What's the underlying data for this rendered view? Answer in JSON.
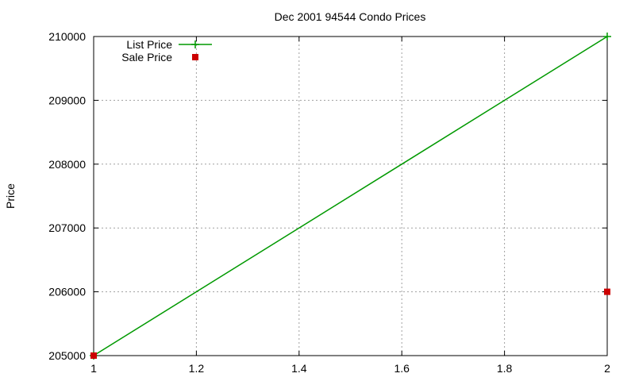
{
  "chart_data": {
    "type": "line",
    "title": "Dec 2001 94544 Condo Prices",
    "xlabel": "",
    "ylabel": "Price",
    "xlim": [
      1,
      2
    ],
    "ylim": [
      205000,
      210000
    ],
    "xticks": [
      "1",
      "1.2",
      "1.4",
      "1.6",
      "1.8",
      "2"
    ],
    "yticks": [
      "205000",
      "206000",
      "207000",
      "208000",
      "209000",
      "210000"
    ],
    "grid": true,
    "legend_position": "top-left",
    "series": [
      {
        "name": "List Price",
        "style": "linespoints",
        "marker": "plus",
        "color": "#009900",
        "x": [
          1,
          2
        ],
        "y": [
          205000,
          210000
        ]
      },
      {
        "name": "Sale Price",
        "style": "points",
        "marker": "square",
        "color": "#cc0000",
        "x": [
          1,
          2
        ],
        "y": [
          205000,
          206000
        ]
      }
    ]
  }
}
